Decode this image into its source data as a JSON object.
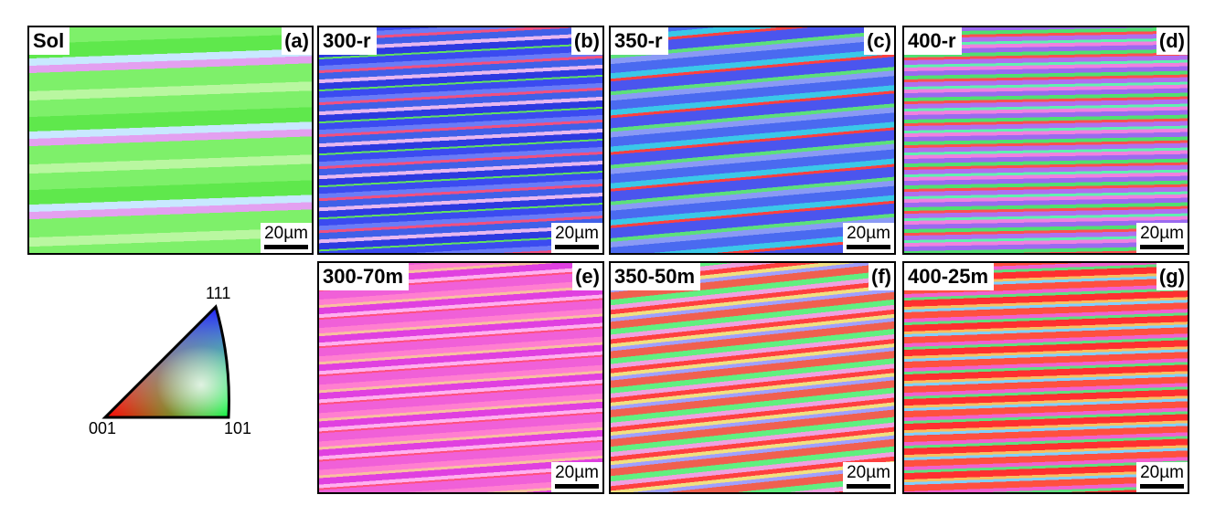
{
  "panels": [
    {
      "name": "Sol",
      "label": "(a)",
      "scale": "20µm"
    },
    {
      "name": "300-r",
      "label": "(b)",
      "scale": "20µm"
    },
    {
      "name": "350-r",
      "label": "(c)",
      "scale": "20µm"
    },
    {
      "name": "400-r",
      "label": "(d)",
      "scale": "20µm"
    },
    {
      "name": "300-70m",
      "label": "(e)",
      "scale": "20µm"
    },
    {
      "name": "350-50m",
      "label": "(f)",
      "scale": "20µm"
    },
    {
      "name": "400-25m",
      "label": "(g)",
      "scale": "20µm"
    }
  ],
  "legend": {
    "top": "111",
    "left": "001",
    "right": "101"
  }
}
